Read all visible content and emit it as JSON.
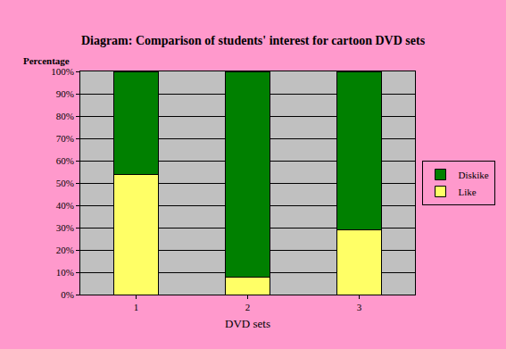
{
  "chart_data": {
    "type": "bar",
    "title": "Diagram: Comparison of students' interest for cartoon DVD sets",
    "x_label": "DVD sets",
    "y_label": "Percentage",
    "categories": [
      "1",
      "2",
      "3"
    ],
    "series": [
      {
        "name": "Like",
        "color": "#ffff66",
        "values": [
          54,
          8,
          29
        ]
      },
      {
        "name": "Diskike",
        "color": "#008000",
        "values": [
          46,
          92,
          71
        ]
      }
    ],
    "stacked": true,
    "ylim": [
      0,
      100
    ],
    "yticks": [
      {
        "value": 0,
        "label": "0%"
      },
      {
        "value": 10,
        "label": "10%"
      },
      {
        "value": 20,
        "label": "20%"
      },
      {
        "value": 30,
        "label": "30%"
      },
      {
        "value": 40,
        "label": "40%"
      },
      {
        "value": 50,
        "label": "50%"
      },
      {
        "value": 60,
        "label": "60%"
      },
      {
        "value": 70,
        "label": "70%"
      },
      {
        "value": 80,
        "label": "80%"
      },
      {
        "value": 90,
        "label": "90%"
      },
      {
        "value": 100,
        "label": "100%"
      }
    ],
    "grid": true,
    "legend": "right"
  }
}
